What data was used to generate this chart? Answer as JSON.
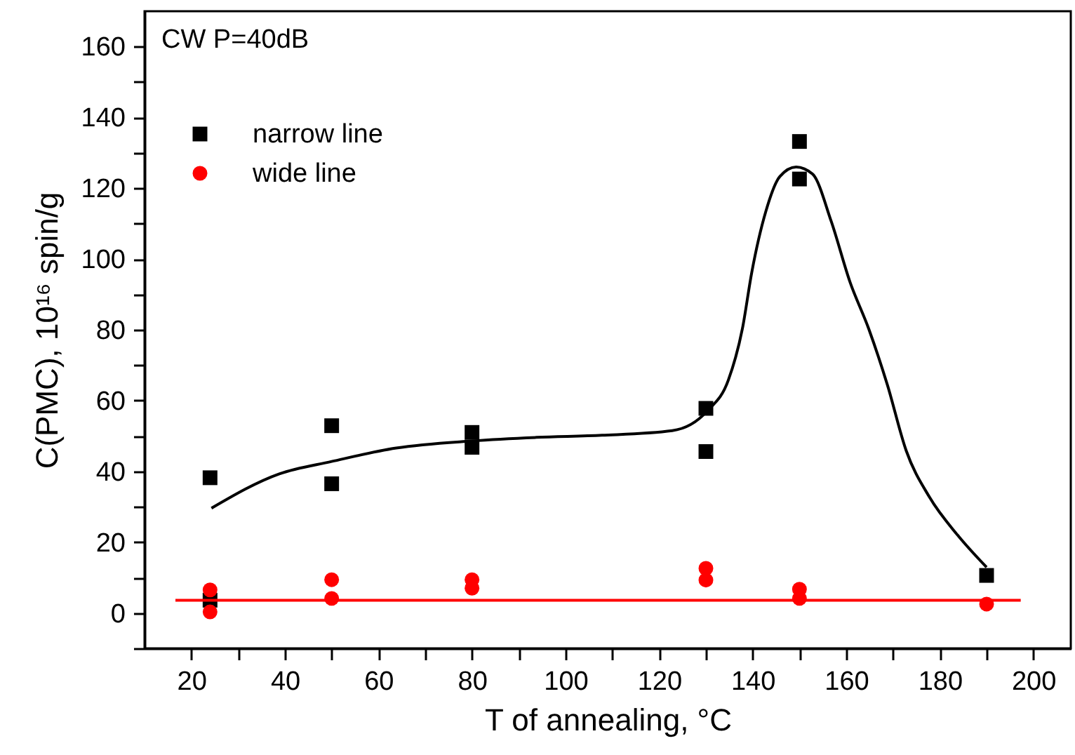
{
  "chart_data": {
    "type": "scatter",
    "xlabel": "T of annealing, °C",
    "ylabel": "C(PMC),  10¹⁶ spin/g",
    "annotations": [
      "CW P=40dB"
    ],
    "xlim": [
      10,
      208
    ],
    "ylim": [
      -10,
      170
    ],
    "xticks": [
      20,
      {
        "value": 30,
        "label": null
      },
      40,
      {
        "value": 50,
        "label": null
      },
      60,
      {
        "value": 70,
        "label": null
      },
      80,
      {
        "value": 90,
        "label": null
      },
      100,
      {
        "value": 110,
        "label": null
      },
      120,
      {
        "value": 130,
        "label": null
      },
      140,
      {
        "value": 150,
        "label": null
      },
      160,
      {
        "value": 170,
        "label": null
      },
      180,
      {
        "value": 190,
        "label": null
      },
      200
    ],
    "yticks": [
      {
        "value": -10,
        "label": null
      },
      0,
      {
        "value": 10,
        "label": null
      },
      20,
      {
        "value": 30,
        "label": null
      },
      40,
      {
        "value": 50,
        "label": null
      },
      60,
      {
        "value": 70,
        "label": null
      },
      80,
      {
        "value": 90,
        "label": null
      },
      100,
      {
        "value": 110,
        "label": null
      },
      120,
      {
        "value": 130,
        "label": null
      },
      140,
      {
        "value": 150,
        "label": null
      },
      160
    ],
    "grid": false,
    "legend": "top left",
    "series": [
      {
        "name": "narrow line",
        "type": "scatter",
        "marker": "square",
        "color": "#000000",
        "x": [
          24,
          24,
          50,
          50,
          80,
          80,
          130,
          130,
          150,
          150,
          190
        ],
        "values": [
          38.2,
          3.6,
          52.9,
          36.5,
          51,
          46.8,
          57.8,
          45.6,
          133.2,
          122.6,
          10.6
        ]
      },
      {
        "name": "wide line",
        "type": "scatter",
        "marker": "circle",
        "color": "#ff0000",
        "x": [
          24,
          24,
          50,
          50,
          80,
          80,
          130,
          130,
          150,
          150,
          190
        ],
        "values": [
          6.5,
          0.3,
          9.4,
          4.1,
          9.4,
          7,
          12.6,
          9.3,
          6.7,
          4.1,
          2.5
        ]
      },
      {
        "type": "line",
        "marker": "none",
        "color": "#000000",
        "x": [
          24.3,
          38.8,
          50,
          63.8,
          80,
          93.8,
          107.8,
          122.8,
          130.3,
          134.8,
          137.8,
          139.8,
          142.8,
          145.8,
          149.3,
          152.8,
          156.8,
          160.8,
          164.8,
          168.8,
          172.8,
          177.8,
          183.8,
          190
        ],
        "values": [
          29.6,
          39.3,
          42.8,
          46.6,
          48.6,
          49.6,
          50.2,
          51.5,
          57.1,
          65.8,
          80.3,
          96.2,
          113.4,
          123.3,
          126,
          124,
          110.6,
          93.5,
          80.3,
          64.4,
          45.9,
          32.7,
          22,
          12.9
        ]
      },
      {
        "type": "line",
        "marker": "none",
        "color": "#ff0000",
        "x": [
          16.6,
          197.3
        ],
        "values": [
          3.6,
          3.6
        ]
      }
    ]
  }
}
